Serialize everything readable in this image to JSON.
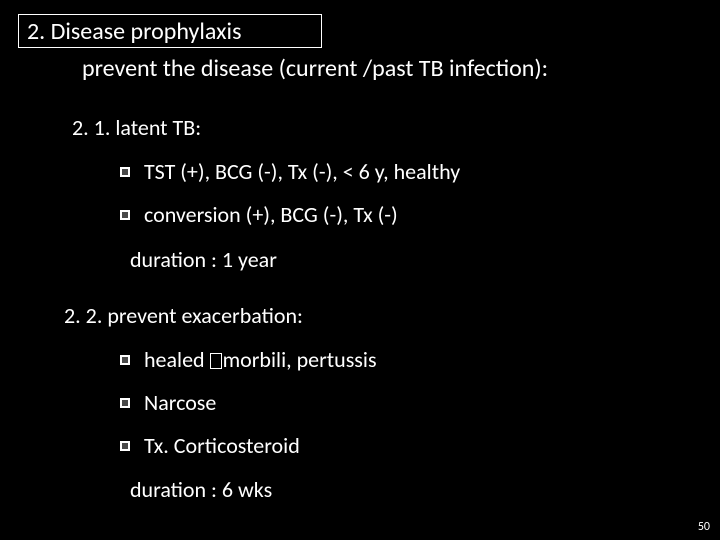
{
  "title": "2.  Disease prophylaxis",
  "subtitle": "prevent the disease (current /past TB infection):",
  "section21": "2. 1. latent TB:",
  "bullets1": {
    "b0": "TST (+), BCG (-), Tx (-),  < 6 y, healthy",
    "b1": "conversion (+), BCG (-), Tx (-)"
  },
  "duration1": "duration : 1 year",
  "section22": "2. 2. prevent exacerbation:",
  "bullets2": {
    "b0_pre": "healed ",
    "b0_post": "morbili, pertussis",
    "b1": "Narcose",
    "b2": "Tx. Corticosteroid"
  },
  "duration2": "duration : 6 wks",
  "page": "50"
}
